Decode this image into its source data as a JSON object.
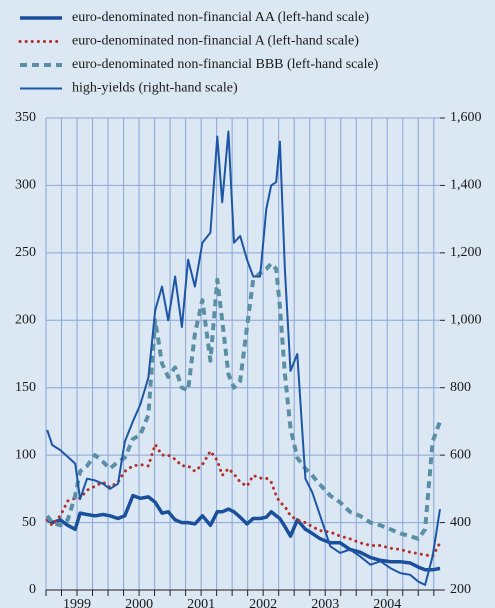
{
  "chart_data": {
    "type": "line",
    "x": [
      1999.02,
      1999.1,
      1999.23,
      1999.35,
      1999.47,
      1999.55,
      1999.66,
      1999.79,
      1999.92,
      2000.03,
      2000.16,
      2000.27,
      2000.4,
      2000.52,
      2000.65,
      2000.76,
      2000.87,
      2000.97,
      2001.08,
      2001.19,
      2001.29,
      2001.4,
      2001.52,
      2001.65,
      2001.76,
      2001.84,
      2001.94,
      2002.03,
      2002.13,
      2002.24,
      2002.34,
      2002.45,
      2002.55,
      2002.63,
      2002.71,
      2002.77,
      2002.85,
      2002.94,
      2003.05,
      2003.18,
      2003.29,
      2003.42,
      2003.58,
      2003.74,
      2003.9,
      2004.06,
      2004.23,
      2004.39,
      2004.55,
      2004.71,
      2004.87,
      2005.0,
      2005.11,
      2005.23,
      2005.35
    ],
    "series": [
      {
        "name": "euro-denominated non-financial AA (left-hand scale)",
        "color": "#1a4f9c",
        "style": "solid-thick",
        "values": [
          52,
          50,
          52,
          48,
          45,
          57,
          56,
          55,
          56,
          55,
          53,
          55,
          70,
          68,
          69,
          65,
          57,
          58,
          52,
          50,
          50,
          49,
          55,
          48,
          58,
          58,
          60,
          58,
          54,
          49,
          53,
          53,
          54,
          58,
          55,
          53,
          47,
          40,
          52,
          45,
          42,
          38,
          35,
          35,
          30,
          28,
          24,
          22,
          21,
          21,
          20,
          17,
          15,
          15,
          16
        ]
      },
      {
        "name": "euro-denominated non-financial A (left-hand scale)",
        "color": "#b5302a",
        "style": "dotted",
        "values": [
          52,
          48,
          55,
          66,
          68,
          68,
          74,
          77,
          80,
          76,
          80,
          88,
          92,
          93,
          92,
          108,
          100,
          100,
          97,
          92,
          92,
          88,
          93,
          103,
          96,
          85,
          90,
          86,
          80,
          77,
          85,
          83,
          83,
          80,
          70,
          65,
          62,
          55,
          52,
          50,
          47,
          44,
          43,
          40,
          38,
          35,
          33,
          33,
          31,
          30,
          28,
          27,
          26,
          25,
          35
        ]
      },
      {
        "name": "euro-denominated non-financial BBB (left-hand scale)",
        "color": "#5b8fa6",
        "style": "dashed",
        "values": [
          55,
          50,
          48,
          52,
          70,
          88,
          92,
          100,
          95,
          90,
          95,
          98,
          112,
          115,
          130,
          200,
          168,
          158,
          165,
          150,
          148,
          190,
          215,
          170,
          230,
          200,
          160,
          150,
          155,
          195,
          230,
          235,
          238,
          242,
          238,
          210,
          160,
          120,
          98,
          90,
          85,
          78,
          70,
          65,
          58,
          55,
          50,
          48,
          45,
          42,
          40,
          38,
          45,
          110,
          125
        ]
      },
      {
        "name": "high-yields (right-hand scale)",
        "color": "#1d56a5",
        "style": "solid-thin",
        "axis": "y2",
        "values": [
          675,
          630,
          615,
          595,
          575,
          470,
          530,
          525,
          515,
          500,
          515,
          640,
          700,
          750,
          830,
          1030,
          1100,
          1000,
          1130,
          980,
          1180,
          1100,
          1230,
          1260,
          1545,
          1350,
          1560,
          1230,
          1250,
          1180,
          1130,
          1130,
          1330,
          1400,
          1410,
          1530,
          1150,
          850,
          900,
          530,
          490,
          420,
          330,
          310,
          320,
          300,
          275,
          285,
          265,
          250,
          245,
          225,
          215,
          300,
          440
        ]
      }
    ],
    "xlim": [
      1999.0,
      2005.35
    ],
    "xticks": [
      {
        "value": 1999.5,
        "label": "1999"
      },
      {
        "value": 2000.5,
        "label": "2000"
      },
      {
        "value": 2001.5,
        "label": "2001"
      },
      {
        "value": 2002.5,
        "label": "2002"
      },
      {
        "value": 2003.5,
        "label": "2003"
      },
      {
        "value": 2004.5,
        "label": "2004"
      }
    ],
    "xminorticks": [
      1999,
      1999.25,
      1999.5,
      1999.75,
      2000,
      2000.25,
      2000.5,
      2000.75,
      2001,
      2001.25,
      2001.5,
      2001.75,
      2002,
      2002.25,
      2002.5,
      2002.75,
      2003,
      2003.25,
      2003.5,
      2003.75,
      2004,
      2004.25,
      2004.5,
      2004.75,
      2005,
      2005.25
    ],
    "ylim": [
      0,
      350
    ],
    "yticks": [
      0,
      50,
      100,
      150,
      200,
      250,
      300,
      350
    ],
    "y2lim": [
      200,
      1600
    ],
    "y2ticks": [
      200,
      400,
      600,
      800,
      {
        "value": 1000,
        "label": "1,000"
      },
      {
        "value": 1200,
        "label": "1,200"
      },
      {
        "value": 1400,
        "label": "1,400"
      },
      {
        "value": 1600,
        "label": "1,600"
      }
    ],
    "grid": true,
    "legend": "top"
  }
}
